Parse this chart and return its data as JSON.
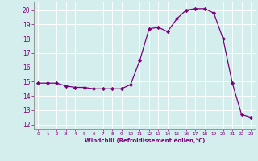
{
  "x": [
    0,
    1,
    2,
    3,
    4,
    5,
    6,
    7,
    8,
    9,
    10,
    11,
    12,
    13,
    14,
    15,
    16,
    17,
    18,
    19,
    20,
    21,
    22,
    23
  ],
  "y": [
    14.9,
    14.9,
    14.9,
    14.7,
    14.6,
    14.6,
    14.5,
    14.5,
    14.5,
    14.5,
    14.8,
    16.5,
    18.7,
    18.8,
    18.5,
    19.4,
    20.0,
    20.1,
    20.1,
    19.8,
    18.0,
    14.9,
    12.7,
    12.5
  ],
  "line_color": "#7b007b",
  "marker": "D",
  "marker_size": 2.2,
  "bg_color": "#d4eeee",
  "grid_color": "#b0d8d8",
  "tick_color": "#7b007b",
  "label_color": "#7b007b",
  "xlabel": "Windchill (Refroidissement éolien,°C)",
  "xlim": [
    -0.5,
    23.5
  ],
  "ylim": [
    11.7,
    20.6
  ],
  "yticks": [
    12,
    13,
    14,
    15,
    16,
    17,
    18,
    19,
    20
  ],
  "xticks": [
    0,
    1,
    2,
    3,
    4,
    5,
    6,
    7,
    8,
    9,
    10,
    11,
    12,
    13,
    14,
    15,
    16,
    17,
    18,
    19,
    20,
    21,
    22,
    23
  ]
}
